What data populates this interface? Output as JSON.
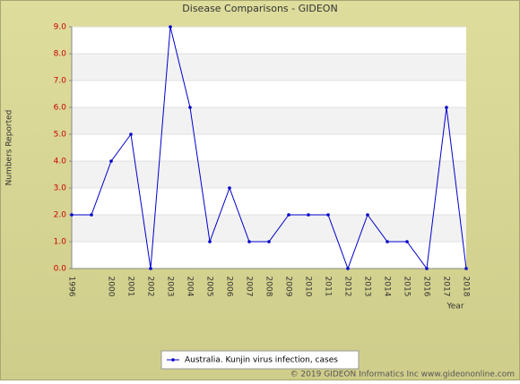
{
  "chart_data": {
    "type": "line",
    "title": "Disease Comparisons - GIDEON",
    "y_label": "Numbers Reported",
    "x_label": "Year",
    "categories": [
      "1996",
      null,
      "2000",
      "2001",
      "2002",
      "2003",
      "2004",
      "2005",
      "2006",
      "2007",
      "2008",
      "2009",
      "2010",
      "2011",
      "2012",
      "2013",
      "2014",
      "2015",
      "2016",
      "2017",
      "2018"
    ],
    "series": [
      {
        "name": "Australia. Kunjin virus infection, cases",
        "color": "#0000cc",
        "values": [
          2,
          2,
          4,
          5,
          0,
          9,
          6,
          1,
          3,
          1,
          1,
          2,
          2,
          2,
          0,
          2,
          1,
          1,
          0,
          6,
          0
        ]
      }
    ],
    "ylim": [
      0,
      9
    ],
    "yticks": [
      {
        "value": 0,
        "label": "0.0"
      },
      {
        "value": 1,
        "label": "1.0"
      },
      {
        "value": 2,
        "label": "2.0"
      },
      {
        "value": 3,
        "label": "3.0"
      },
      {
        "value": 4,
        "label": "4.0"
      },
      {
        "value": 5,
        "label": "5.0"
      },
      {
        "value": 6,
        "label": "6.0"
      },
      {
        "value": 7,
        "label": "7.0"
      },
      {
        "value": 8,
        "label": "8.0"
      },
      {
        "value": 9,
        "label": "9.0"
      }
    ],
    "grid": true,
    "legend": "bottom",
    "copyright": "© 2019 GIDEON Informatics Inc www.gideononline.com"
  }
}
